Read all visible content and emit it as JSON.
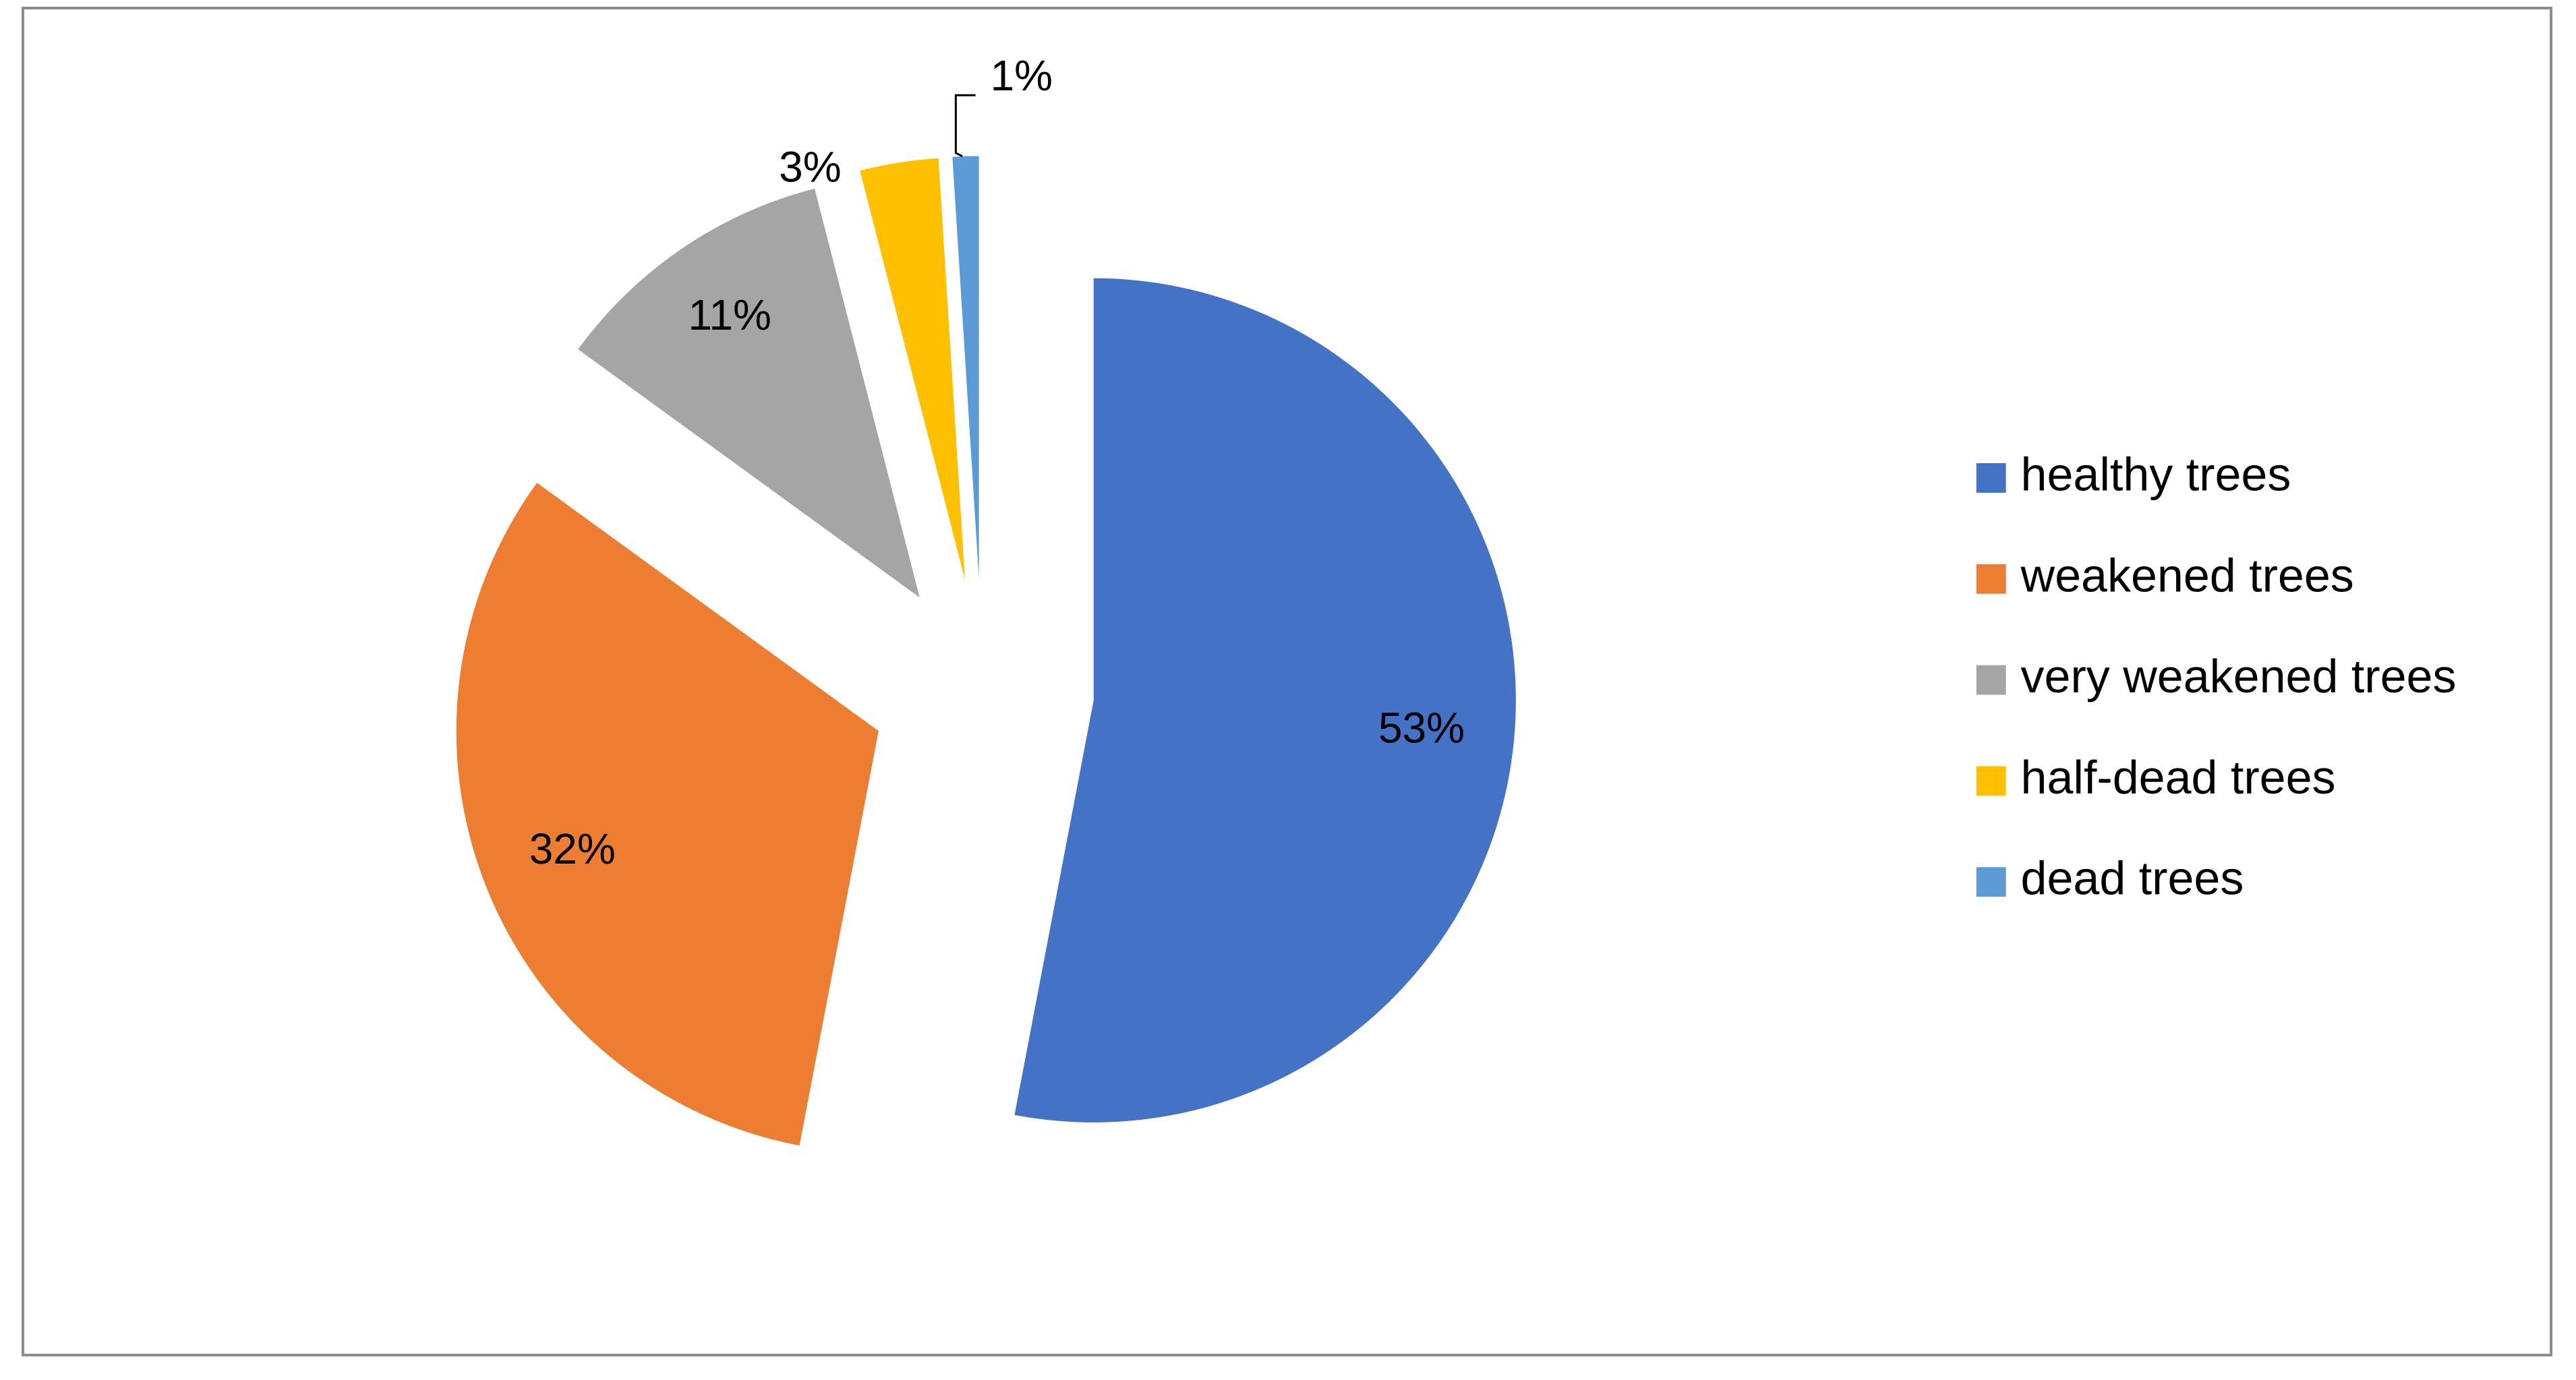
{
  "chart_data": {
    "type": "pie",
    "categories": [
      "healthy trees",
      "weakened trees",
      "very weakened trees",
      "half-dead trees",
      "dead trees"
    ],
    "values": [
      53,
      32,
      11,
      3,
      1
    ],
    "value_labels": [
      "53%",
      "32%",
      "11%",
      "3%",
      "1%"
    ],
    "colors": [
      "#4472c4",
      "#ed7d31",
      "#a5a5a5",
      "#ffc000",
      "#5b9bd5"
    ],
    "legend": "right"
  }
}
